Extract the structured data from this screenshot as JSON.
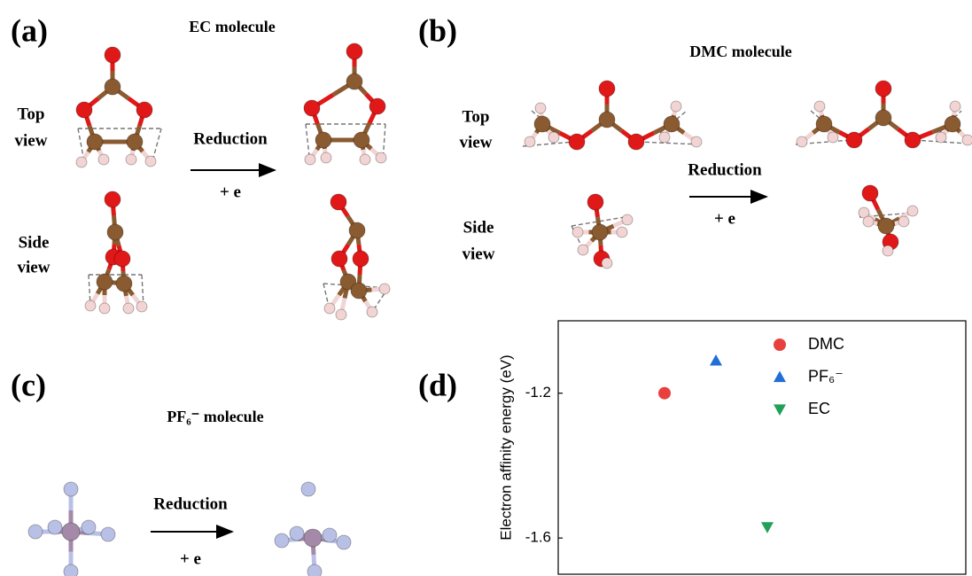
{
  "panel_a": {
    "label": "(a)",
    "title": "EC molecule",
    "top": "Top",
    "top_view": "view",
    "side": "Side",
    "side_view": "view",
    "reaction": "Reduction",
    "electron": "+ e"
  },
  "panel_b": {
    "label": "(b)",
    "title": "DMC molecule",
    "top": "Top",
    "top_view": "view",
    "side": "Side",
    "side_view": "view",
    "reaction": "Reduction",
    "electron": "+ e"
  },
  "panel_c": {
    "label": "(c)",
    "title": "PF₆⁻ molecule",
    "reaction": "Reduction",
    "electron": "+ e"
  },
  "panel_d": {
    "label": "(d)"
  },
  "chart_data": {
    "type": "scatter",
    "ylabel": "Electron affinity energy (eV)",
    "ylim": [
      -1.7,
      -1.0
    ],
    "yticks": [
      -1.2,
      -1.6
    ],
    "series": [
      {
        "name": "DMC",
        "color": "#e8403f",
        "marker": "circle",
        "values": [
          -1.2
        ]
      },
      {
        "name": "PF₆⁻",
        "color": "#1f6fd6",
        "marker": "triangle-up",
        "values": [
          -1.11
        ]
      },
      {
        "name": "EC",
        "color": "#22a05a",
        "marker": "triangle-down",
        "values": [
          -1.57
        ]
      }
    ]
  }
}
